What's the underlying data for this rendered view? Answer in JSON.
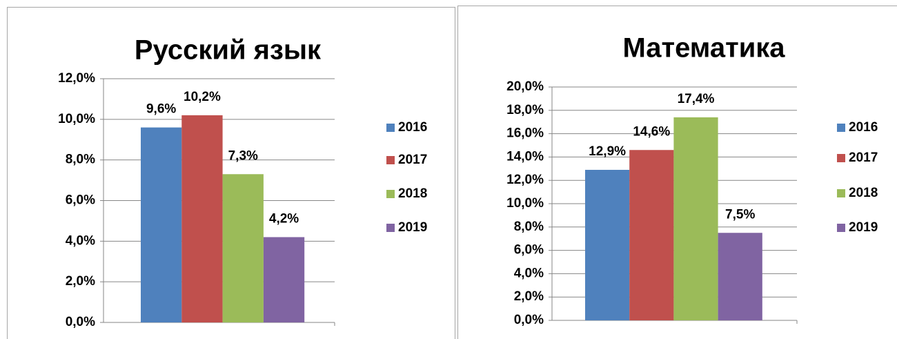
{
  "chart_data": [
    {
      "type": "bar",
      "title": "Русский язык",
      "categories": [
        null
      ],
      "series": [
        {
          "name": "2016",
          "color": "#4f81bd",
          "values": [
            9.6
          ],
          "value_labels": [
            "9,6%"
          ]
        },
        {
          "name": "2017",
          "color": "#c0504d",
          "values": [
            10.2
          ],
          "value_labels": [
            "10,2%"
          ]
        },
        {
          "name": "2018",
          "color": "#9bbb59",
          "values": [
            7.3
          ],
          "value_labels": [
            "7,3%"
          ]
        },
        {
          "name": "2019",
          "color": "#8064a2",
          "values": [
            4.2
          ],
          "value_labels": [
            "4,2%"
          ]
        }
      ],
      "ylim": [
        0,
        12
      ],
      "yticks": [
        {
          "value": 0,
          "label": "0,0%"
        },
        {
          "value": 2,
          "label": "2,0%"
        },
        {
          "value": 4,
          "label": "4,0%"
        },
        {
          "value": 6,
          "label": "6,0%"
        },
        {
          "value": 8,
          "label": "8,0%"
        },
        {
          "value": 10,
          "label": "10,0%"
        },
        {
          "value": 12,
          "label": "12,0%"
        }
      ],
      "grid": true,
      "legend": "right"
    },
    {
      "type": "bar",
      "title": "Математика",
      "categories": [
        null
      ],
      "series": [
        {
          "name": "2016",
          "color": "#4f81bd",
          "values": [
            12.9
          ],
          "value_labels": [
            "12,9%"
          ]
        },
        {
          "name": "2017",
          "color": "#c0504d",
          "values": [
            14.6
          ],
          "value_labels": [
            "14,6%"
          ]
        },
        {
          "name": "2018",
          "color": "#9bbb59",
          "values": [
            17.4
          ],
          "value_labels": [
            "17,4%"
          ]
        },
        {
          "name": "2019",
          "color": "#8064a2",
          "values": [
            7.5
          ],
          "value_labels": [
            "7,5%"
          ]
        }
      ],
      "ylim": [
        0,
        20
      ],
      "yticks": [
        {
          "value": 0,
          "label": "0,0%"
        },
        {
          "value": 2,
          "label": "2,0%"
        },
        {
          "value": 4,
          "label": "4,0%"
        },
        {
          "value": 6,
          "label": "6,0%"
        },
        {
          "value": 8,
          "label": "8,0%"
        },
        {
          "value": 10,
          "label": "10,0%"
        },
        {
          "value": 12,
          "label": "12,0%"
        },
        {
          "value": 14,
          "label": "14,0%"
        },
        {
          "value": 16,
          "label": "16,0%"
        },
        {
          "value": 18,
          "label": "18,0%"
        },
        {
          "value": 20,
          "label": "20,0%"
        }
      ],
      "grid": true,
      "legend": "right"
    }
  ]
}
